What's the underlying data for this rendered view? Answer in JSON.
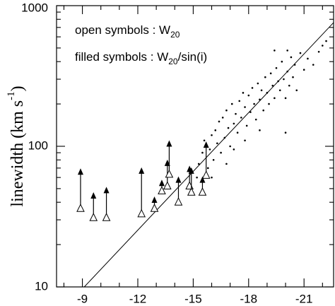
{
  "chart_data": {
    "type": "scatter",
    "y_label": {
      "text": "linewidth (km s",
      "sup": "-1",
      "after": ")"
    },
    "annotations": [
      {
        "text": "open symbols : W",
        "sub": "20"
      },
      {
        "text": "filled symbols : W",
        "sub": "20",
        "after": "/sin(i)"
      }
    ],
    "xlim": [
      -7.6,
      -22.6
    ],
    "xticks": [
      -9,
      -12,
      -15,
      -18,
      -21
    ],
    "xminor": [
      -8,
      -10,
      -11,
      -13,
      -14,
      -16,
      -17,
      -19,
      -20,
      -22
    ],
    "ylim": [
      10,
      1000
    ],
    "yscale": "log",
    "yticks": [
      10,
      100,
      1000
    ],
    "yminor": [
      20,
      30,
      40,
      50,
      60,
      70,
      80,
      90,
      200,
      300,
      400,
      500,
      600,
      700,
      800,
      900
    ],
    "pairs": {
      "x": [
        -8.9,
        -9.6,
        -10.3,
        -12.2,
        -12.9,
        -13.3,
        -13.6,
        -13.7,
        -14.2,
        -14.8,
        -14.9,
        -15.5,
        -15.7
      ],
      "open": [
        36,
        31,
        31,
        33,
        36,
        48,
        52,
        63,
        40,
        52,
        47,
        47,
        62
      ],
      "filled": [
        65,
        44,
        48,
        66,
        41,
        54,
        75,
        103,
        57,
        68,
        66,
        57,
        101
      ]
    },
    "points": {
      "x": [
        -15.3,
        -15.5,
        -15.6,
        -15.8,
        -15.9,
        -16.0,
        -16.1,
        -16.2,
        -16.3,
        -16.4,
        -16.5,
        -16.6,
        -16.7,
        -16.8,
        -16.9,
        -17.0,
        -17.1,
        -17.2,
        -17.3,
        -17.4,
        -17.5,
        -17.6,
        -17.7,
        -17.8,
        -17.9,
        -18.0,
        -18.1,
        -18.2,
        -18.3,
        -18.4,
        -18.5,
        -18.6,
        -18.7,
        -18.8,
        -18.9,
        -19.0,
        -19.1,
        -19.2,
        -19.3,
        -19.4,
        -19.5,
        -19.6,
        -19.7,
        -19.8,
        -19.9,
        -20.0,
        -20.0,
        -20.1,
        -20.2,
        -20.3,
        -20.4,
        -20.5,
        -20.6,
        -20.8,
        -21.0,
        -21.2,
        -21.5,
        -21.8,
        -22.0,
        -22.2,
        -17.2,
        -16.0,
        -18.6,
        -19.4,
        -20.1,
        -15.2,
        -16.8,
        -17.8
      ],
      "values": [
        75,
        90,
        110,
        70,
        95,
        120,
        80,
        130,
        105,
        150,
        90,
        160,
        115,
        180,
        135,
        100,
        200,
        145,
        170,
        125,
        210,
        160,
        240,
        190,
        140,
        230,
        175,
        260,
        200,
        155,
        280,
        215,
        250,
        180,
        310,
        240,
        200,
        330,
        270,
        220,
        360,
        290,
        250,
        400,
        300,
        220,
        125,
        340,
        270,
        430,
        310,
        380,
        250,
        460,
        350,
        420,
        380,
        470,
        520,
        560,
        95,
        60,
        130,
        480,
        480,
        60,
        75,
        110
      ]
    },
    "fit": {
      "x": [
        -9.1,
        -22.6
      ],
      "values": [
        10,
        758
      ]
    }
  }
}
